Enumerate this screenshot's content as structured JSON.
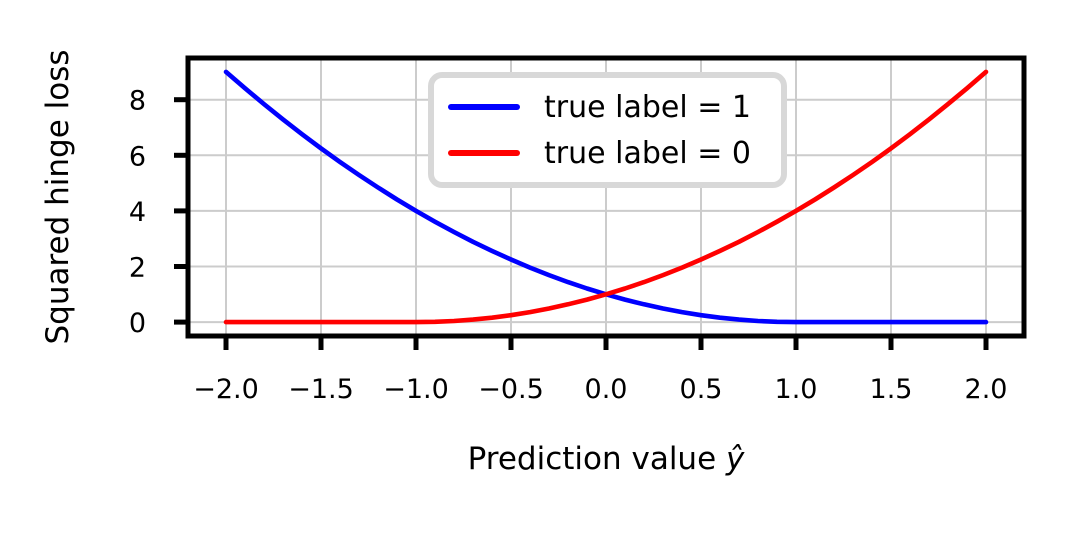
{
  "chart_data": {
    "type": "line",
    "title": "",
    "xlabel": "Prediction value ŷ",
    "xlabel_parts": {
      "prefix": "Prediction value ",
      "symbol": "ŷ"
    },
    "ylabel": "Squared hinge loss",
    "xlim": [
      -2.2,
      2.2
    ],
    "ylim": [
      -0.5,
      9.5
    ],
    "grid": true,
    "grid_color": "#cccccc",
    "axes_color": "#000000",
    "background_color": "#ffffff",
    "legend_position": "upper center",
    "legend_border_color": "#d8d8d8",
    "x_ticks": [
      -2.0,
      -1.5,
      -1.0,
      -0.5,
      0.0,
      0.5,
      1.0,
      1.5,
      2.0
    ],
    "x_tick_labels": [
      "−2.0",
      "−1.5",
      "−1.0",
      "−0.5",
      "0.0",
      "0.5",
      "1.0",
      "1.5",
      "2.0"
    ],
    "y_ticks": [
      0,
      2,
      4,
      6,
      8
    ],
    "y_tick_labels": [
      "0",
      "2",
      "4",
      "6",
      "8"
    ],
    "x": [
      -2.0,
      -1.9,
      -1.8,
      -1.7,
      -1.6,
      -1.5,
      -1.4,
      -1.3,
      -1.2,
      -1.1,
      -1.0,
      -0.9,
      -0.8,
      -0.7,
      -0.6,
      -0.5,
      -0.4,
      -0.3,
      -0.2,
      -0.1,
      0.0,
      0.1,
      0.2,
      0.3,
      0.4,
      0.5,
      0.6,
      0.7,
      0.8,
      0.9,
      1.0,
      1.1,
      1.2,
      1.3,
      1.4,
      1.5,
      1.6,
      1.7,
      1.8,
      1.9,
      2.0
    ],
    "series": [
      {
        "name": "true label = 1",
        "color": "#0000ff",
        "values": [
          9.0,
          8.41,
          7.84,
          7.29,
          6.76,
          6.25,
          5.76,
          5.29,
          4.84,
          4.41,
          4.0,
          3.61,
          3.24,
          2.89,
          2.56,
          2.25,
          1.96,
          1.69,
          1.44,
          1.21,
          1.0,
          0.81,
          0.64,
          0.49,
          0.36,
          0.25,
          0.16,
          0.09,
          0.04,
          0.01,
          0.0,
          0.0,
          0.0,
          0.0,
          0.0,
          0.0,
          0.0,
          0.0,
          0.0,
          0.0,
          0.0
        ]
      },
      {
        "name": "true label = 0",
        "color": "#ff0000",
        "values": [
          0.0,
          0.0,
          0.0,
          0.0,
          0.0,
          0.0,
          0.0,
          0.0,
          0.0,
          0.0,
          0.0,
          0.01,
          0.04,
          0.09,
          0.16,
          0.25,
          0.36,
          0.49,
          0.64,
          0.81,
          1.0,
          1.21,
          1.44,
          1.69,
          1.96,
          2.25,
          2.56,
          2.89,
          3.24,
          3.61,
          4.0,
          4.41,
          4.84,
          5.29,
          5.76,
          6.25,
          6.76,
          7.29,
          7.84,
          8.41,
          9.0
        ]
      }
    ]
  }
}
